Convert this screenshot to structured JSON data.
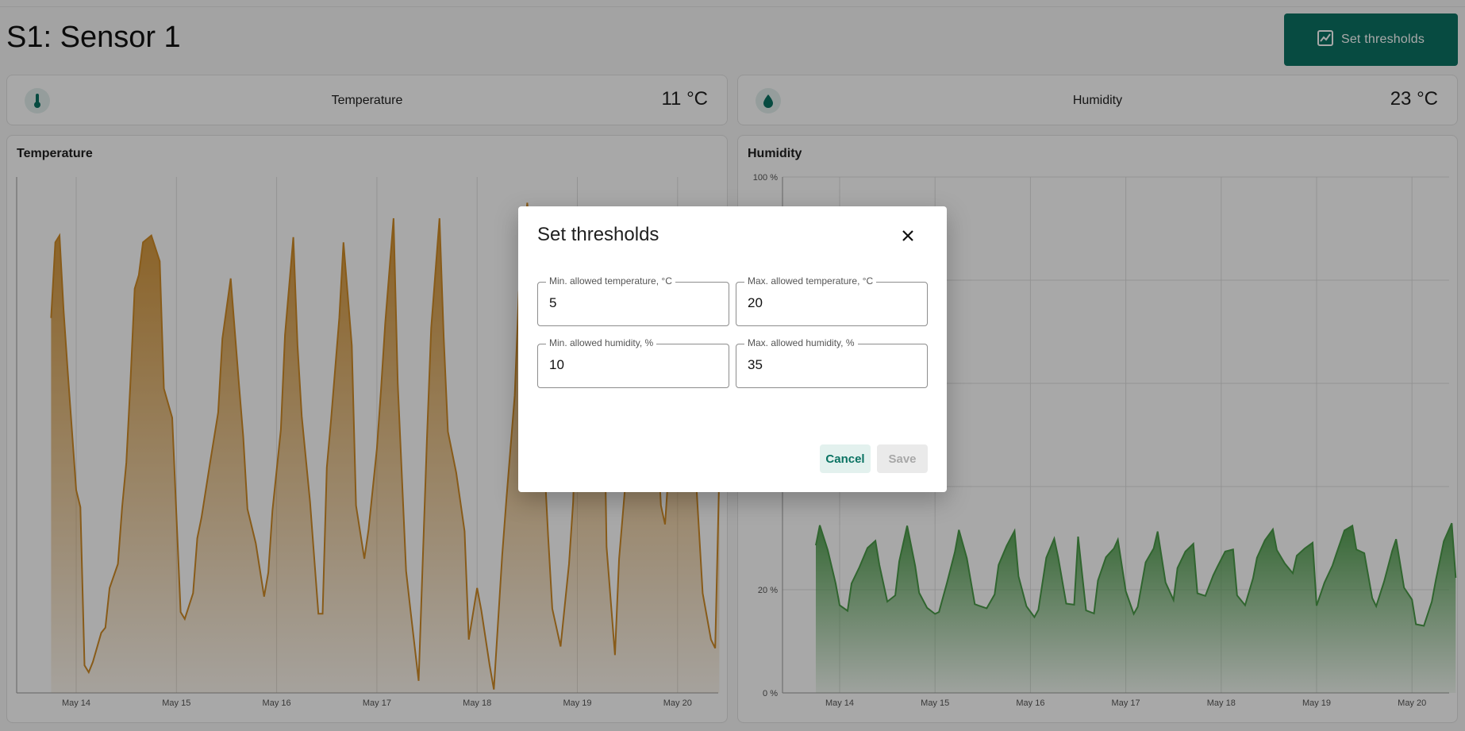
{
  "page": {
    "title": "S1: Sensor 1"
  },
  "toolbar": {
    "thresholds_label": "Set thresholds",
    "thresholds_icon": "chart-icon"
  },
  "summary": [
    {
      "label": "Temperature",
      "value": "11 °C",
      "icon": "thermometer-icon"
    },
    {
      "label": "Humidity",
      "value": "23 °C",
      "icon": "water-drop-icon"
    }
  ],
  "colors": {
    "accent": "#0b7363",
    "temperature": "#cf8b27",
    "humidity": "#4a9a48"
  },
  "chart_data": [
    {
      "type": "area",
      "title": "Temperature",
      "x_ticks": [
        "May 14",
        "May 15",
        "May 16",
        "May 17",
        "May 18",
        "May 19",
        "May 20"
      ],
      "y_ticks": [],
      "ylim": [
        0,
        30
      ],
      "x": [
        "May 13 18:00",
        "May 13 19:00",
        "May 13 20:00",
        "May 13 21:00",
        "May 13 22:00",
        "May 14 00:00",
        "May 14 01:00",
        "May 14 02:00",
        "May 14 03:00",
        "May 14 04:00",
        "May 14 06:00",
        "May 14 07:00",
        "May 14 08:00",
        "May 14 10:00",
        "May 14 11:00",
        "May 14 12:00",
        "May 14 13:00",
        "May 14 14:00",
        "May 14 15:00",
        "May 14 16:00",
        "May 14 18:00",
        "May 14 20:00",
        "May 14 21:00",
        "May 14 23:00",
        "May 15 01:00",
        "May 15 02:00",
        "May 15 04:00",
        "May 15 05:00",
        "May 15 06:00",
        "May 15 08:00",
        "May 15 10:00",
        "May 15 11:00",
        "May 15 13:00",
        "May 15 15:00",
        "May 15 16:00",
        "May 15 17:00",
        "May 15 19:00",
        "May 15 21:00",
        "May 15 22:00",
        "May 15 23:00",
        "May 16 01:00",
        "May 16 02:00",
        "May 16 04:00",
        "May 16 05:00",
        "May 16 06:00",
        "May 16 08:00",
        "May 16 10:00",
        "May 16 11:00",
        "May 16 12:00",
        "May 16 13:00",
        "May 16 15:00",
        "May 16 16:00",
        "May 16 18:00",
        "May 16 19:00",
        "May 16 21:00",
        "May 16 22:00",
        "May 17 00:00",
        "May 17 01:00",
        "May 17 02:00",
        "May 17 04:00",
        "May 17 05:00",
        "May 17 07:00",
        "May 17 08:00",
        "May 17 10:00",
        "May 17 12:00",
        "May 17 13:00",
        "May 17 15:00",
        "May 17 16:00",
        "May 17 17:00",
        "May 17 19:00",
        "May 17 21:00",
        "May 17 22:00",
        "May 18 00:00",
        "May 18 01:00",
        "May 18 03:00",
        "May 18 04:00",
        "May 18 06:00",
        "May 18 07:00",
        "May 18 09:00",
        "May 18 10:00",
        "May 18 12:00",
        "May 18 13:00",
        "May 18 15:00",
        "May 18 17:00",
        "May 18 18:00",
        "May 18 20:00",
        "May 18 22:00",
        "May 18 23:00",
        "May 19 00:00",
        "May 19 02:00",
        "May 19 04:00",
        "May 19 06:00",
        "May 19 07:00",
        "May 19 09:00",
        "May 19 10:00",
        "May 19 12:00",
        "May 19 14:00",
        "May 19 15:00",
        "May 19 17:00",
        "May 19 18:00",
        "May 19 20:00",
        "May 19 21:00",
        "May 19 23:00",
        "May 20 01:00",
        "May 20 02:00",
        "May 20 04:00",
        "May 20 06:00",
        "May 20 08:00",
        "May 20 09:00",
        "May 20 10:00"
      ],
      "series": [
        {
          "values": [
            21.8,
            26.2,
            26.6,
            22.2,
            18.6,
            11.8,
            10.8,
            1.6,
            1.2,
            1.8,
            3.5,
            3.8,
            6.1,
            7.5,
            10.8,
            13.4,
            18.1,
            23.5,
            24.3,
            26.2,
            26.6,
            25.1,
            17.7,
            16.0,
            4.7,
            4.3,
            5.8,
            9.0,
            10.2,
            13.3,
            16.3,
            20.6,
            24.1,
            17.9,
            14.9,
            10.7,
            8.7,
            5.6,
            7.0,
            10.6,
            15.3,
            20.8,
            26.5,
            20.2,
            16.1,
            11.1,
            4.6,
            4.6,
            13.1,
            15.8,
            21.8,
            26.2,
            20.2,
            10.9,
            7.8,
            9.5,
            14.2,
            17.7,
            21.5,
            27.6,
            18.0,
            7.1,
            4.9,
            0.7,
            14.8,
            21.2,
            27.6,
            20.7,
            15.2,
            12.8,
            9.4,
            3.1,
            6.1,
            4.8,
            1.6,
            0.2,
            8.0,
            11.2,
            17.3,
            23.3,
            28.5,
            25.6,
            18.7,
            9.1,
            4.9,
            2.7,
            7.5,
            11.1,
            18.6,
            28.2,
            28.0,
            23.4,
            8.5,
            2.2,
            7.8,
            13.6,
            17.8,
            24.7,
            25.6,
            20.4,
            10.9,
            9.8,
            17.1,
            24.4,
            20.6,
            14.1,
            5.8,
            3.1,
            2.6,
            12.9
          ],
          "color": "#cf8b27"
        }
      ]
    },
    {
      "type": "area",
      "title": "Humidity",
      "x_ticks": [
        "May 14",
        "May 15",
        "May 16",
        "May 17",
        "May 18",
        "May 19",
        "May 20"
      ],
      "y_ticks": [
        "0 %",
        "20 %",
        "100 %"
      ],
      "ylim": [
        0,
        100
      ],
      "x": [
        "May 13 18:00",
        "May 13 19:00",
        "May 13 21:00",
        "May 13 23:00",
        "May 14 00:00",
        "May 14 02:00",
        "May 14 03:00",
        "May 14 05:00",
        "May 14 07:00",
        "May 14 09:00",
        "May 14 10:00",
        "May 14 12:00",
        "May 14 14:00",
        "May 14 15:00",
        "May 14 17:00",
        "May 14 19:00",
        "May 14 20:00",
        "May 14 22:00",
        "May 15 00:00",
        "May 15 01:00",
        "May 15 03:00",
        "May 15 05:00",
        "May 15 06:00",
        "May 15 08:00",
        "May 15 10:00",
        "May 15 11:00",
        "May 15 13:00",
        "May 15 15:00",
        "May 15 16:00",
        "May 15 18:00",
        "May 15 20:00",
        "May 15 21:00",
        "May 15 23:00",
        "May 16 01:00",
        "May 16 02:00",
        "May 16 04:00",
        "May 16 06:00",
        "May 16 07:00",
        "May 16 09:00",
        "May 16 11:00",
        "May 16 12:00",
        "May 16 14:00",
        "May 16 16:00",
        "May 16 17:00",
        "May 16 19:00",
        "May 16 21:00",
        "May 16 22:00",
        "May 17 00:00",
        "May 17 02:00",
        "May 17 03:00",
        "May 17 05:00",
        "May 17 07:00",
        "May 17 08:00",
        "May 17 10:00",
        "May 17 12:00",
        "May 17 13:00",
        "May 17 15:00",
        "May 17 17:00",
        "May 17 18:00",
        "May 17 20:00",
        "May 17 22:00",
        "May 17 23:00",
        "May 18 01:00",
        "May 18 03:00",
        "May 18 04:00",
        "May 18 06:00",
        "May 18 08:00",
        "May 18 09:00",
        "May 18 11:00",
        "May 18 13:00",
        "May 18 14:00",
        "May 18 16:00",
        "May 18 18:00",
        "May 18 19:00",
        "May 18 21:00",
        "May 18 23:00",
        "May 19 00:00",
        "May 19 02:00",
        "May 19 04:00",
        "May 19 05:00",
        "May 19 07:00",
        "May 19 09:00",
        "May 19 10:00",
        "May 19 12:00",
        "May 19 14:00",
        "May 19 15:00",
        "May 19 17:00",
        "May 19 19:00",
        "May 19 20:00",
        "May 19 22:00",
        "May 20 00:00",
        "May 20 01:00",
        "May 20 03:00",
        "May 20 05:00",
        "May 20 06:00",
        "May 20 08:00",
        "May 20 10:00",
        "May 20 11:00"
      ],
      "series": [
        {
          "values": [
            28.6,
            32.5,
            27.7,
            21.2,
            17.0,
            15.9,
            21.2,
            24.4,
            28.1,
            29.5,
            24.8,
            17.7,
            18.9,
            25.5,
            32.4,
            24.6,
            19.4,
            16.5,
            15.3,
            15.7,
            21.3,
            27.3,
            31.6,
            26.1,
            17.2,
            16.9,
            16.4,
            19.1,
            24.8,
            28.5,
            31.4,
            22.6,
            16.8,
            14.7,
            16.1,
            26.2,
            29.9,
            26.2,
            17.3,
            17.1,
            30.3,
            16.0,
            15.4,
            21.8,
            26.3,
            28.0,
            29.7,
            19.7,
            15.3,
            16.7,
            25.3,
            28.0,
            31.3,
            21.4,
            18.0,
            24.2,
            27.4,
            28.9,
            19.3,
            18.8,
            22.8,
            24.4,
            27.4,
            27.8,
            18.9,
            17.0,
            22.2,
            26.2,
            29.6,
            31.7,
            27.7,
            25.1,
            23.2,
            26.6,
            28.0,
            29.1,
            16.9,
            21.4,
            24.7,
            27.0,
            31.5,
            32.4,
            27.8,
            27.1,
            18.4,
            16.8,
            21.6,
            27.5,
            29.8,
            20.4,
            18.1,
            13.3,
            13.0,
            17.7,
            21.9,
            29.4,
            32.9,
            22.3
          ],
          "color": "#4a9a48"
        }
      ]
    }
  ],
  "modal": {
    "title": "Set thresholds",
    "close_icon": "close-icon",
    "fields": [
      {
        "label": "Min. allowed temperature, °C",
        "value": "5"
      },
      {
        "label": "Max. allowed temperature, °C",
        "value": "20"
      },
      {
        "label": "Min. allowed humidity, %",
        "value": "10"
      },
      {
        "label": "Max. allowed humidity, %",
        "value": "35"
      }
    ],
    "cancel_label": "Cancel",
    "save_label": "Save"
  }
}
